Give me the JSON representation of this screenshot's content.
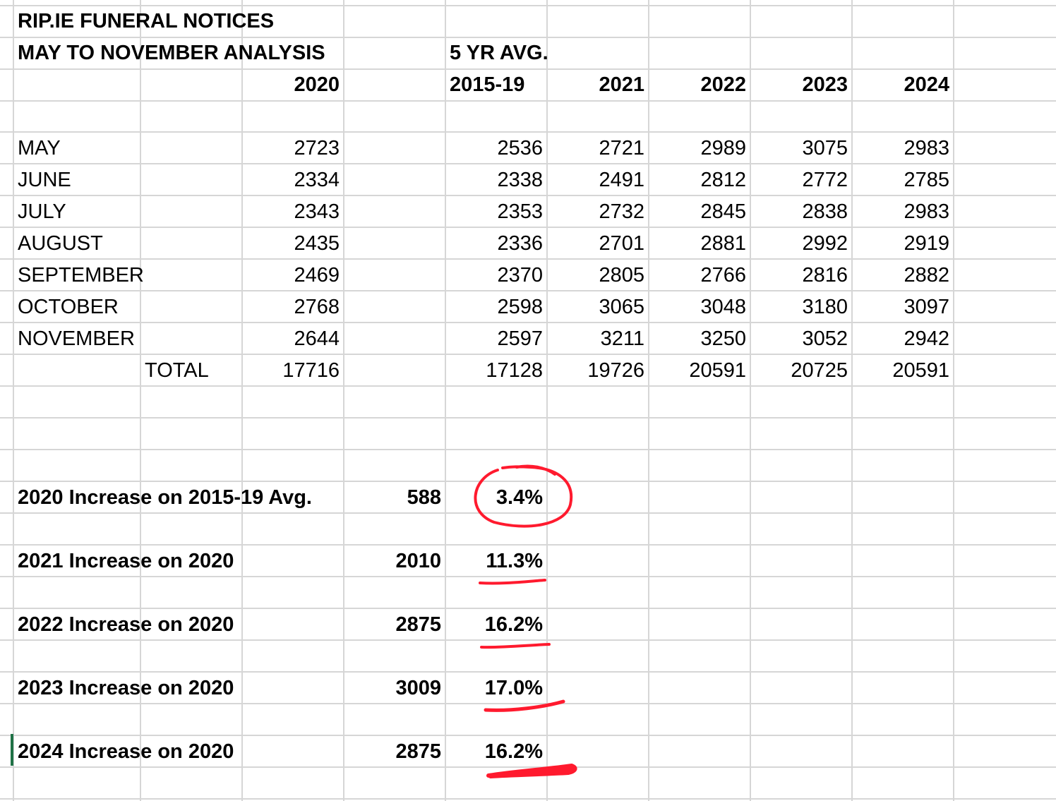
{
  "title": "RIP.IE FUNERAL NOTICES",
  "subtitle": "MAY TO NOVEMBER ANALYSIS",
  "avg_header": "5 YR AVG.",
  "col_headers": [
    "2020",
    "2015-19",
    "2021",
    "2022",
    "2023",
    "2024"
  ],
  "months": [
    {
      "name": "MAY",
      "v": [
        "2723",
        "2536",
        "2721",
        "2989",
        "3075",
        "2983"
      ]
    },
    {
      "name": "JUNE",
      "v": [
        "2334",
        "2338",
        "2491",
        "2812",
        "2772",
        "2785"
      ]
    },
    {
      "name": "JULY",
      "v": [
        "2343",
        "2353",
        "2732",
        "2845",
        "2838",
        "2983"
      ]
    },
    {
      "name": "AUGUST",
      "v": [
        "2435",
        "2336",
        "2701",
        "2881",
        "2992",
        "2919"
      ]
    },
    {
      "name": "SEPTEMBER",
      "v": [
        "2469",
        "2370",
        "2805",
        "2766",
        "2816",
        "2882"
      ]
    },
    {
      "name": "OCTOBER",
      "v": [
        "2768",
        "2598",
        "3065",
        "3048",
        "3180",
        "3097"
      ]
    },
    {
      "name": "NOVEMBER",
      "v": [
        "2644",
        "2597",
        "3211",
        "3250",
        "3052",
        "2942"
      ]
    }
  ],
  "total": {
    "label": "TOTAL",
    "v": [
      "17716",
      "17128",
      "19726",
      "20591",
      "20725",
      "20591"
    ]
  },
  "summary": [
    {
      "label": "2020 Increase on 2015-19 Avg.",
      "value": "588",
      "pct": "3.4%"
    },
    {
      "label": "2021 Increase on 2020",
      "value": "2010",
      "pct": "11.3%"
    },
    {
      "label": "2022 Increase on 2020",
      "value": "2875",
      "pct": "16.2%"
    },
    {
      "label": "2023 Increase on 2020",
      "value": "3009",
      "pct": "17.0%"
    },
    {
      "label": "2024 Increase on 2020",
      "value": "2875",
      "pct": "16.2%"
    }
  ],
  "annotation_color": "#ff1a2e",
  "gridline_color": "#d6d6d6"
}
